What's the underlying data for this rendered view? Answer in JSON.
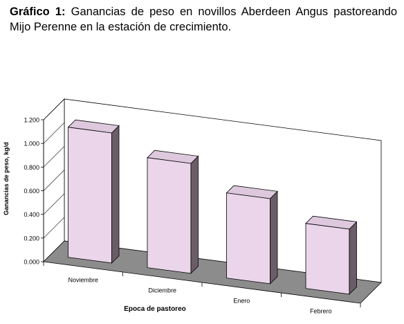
{
  "title": {
    "lead": "Gráfico 1:",
    "text": "Ganancias de peso en novillos Aberdeen Angus pastoreando Mijo Perenne en la estación de crecimiento."
  },
  "chart_data": {
    "type": "bar",
    "categories": [
      "Noviembre",
      "Diciembre",
      "Enero",
      "Febrero"
    ],
    "values": [
      1.1,
      0.93,
      0.72,
      0.55
    ],
    "ylim": [
      0,
      1.2
    ],
    "yticks": [
      0,
      0.2,
      0.4,
      0.6,
      0.8,
      1.0,
      1.2
    ],
    "ytick_labels": [
      "0.000",
      "0.200",
      "0.400",
      "0.600",
      "0.800",
      "1.000",
      "1.200"
    ],
    "xlabel": "Epoca de pastoreo",
    "ylabel": "Ganancias de peso, kg/d",
    "grid": false,
    "style": "3d",
    "colors": {
      "bar_front": "#ead5ea",
      "bar_side": "#6b5d68",
      "bar_top": "#ddc8dd",
      "floor": "#8c8c8c",
      "axis": "#000000"
    }
  }
}
